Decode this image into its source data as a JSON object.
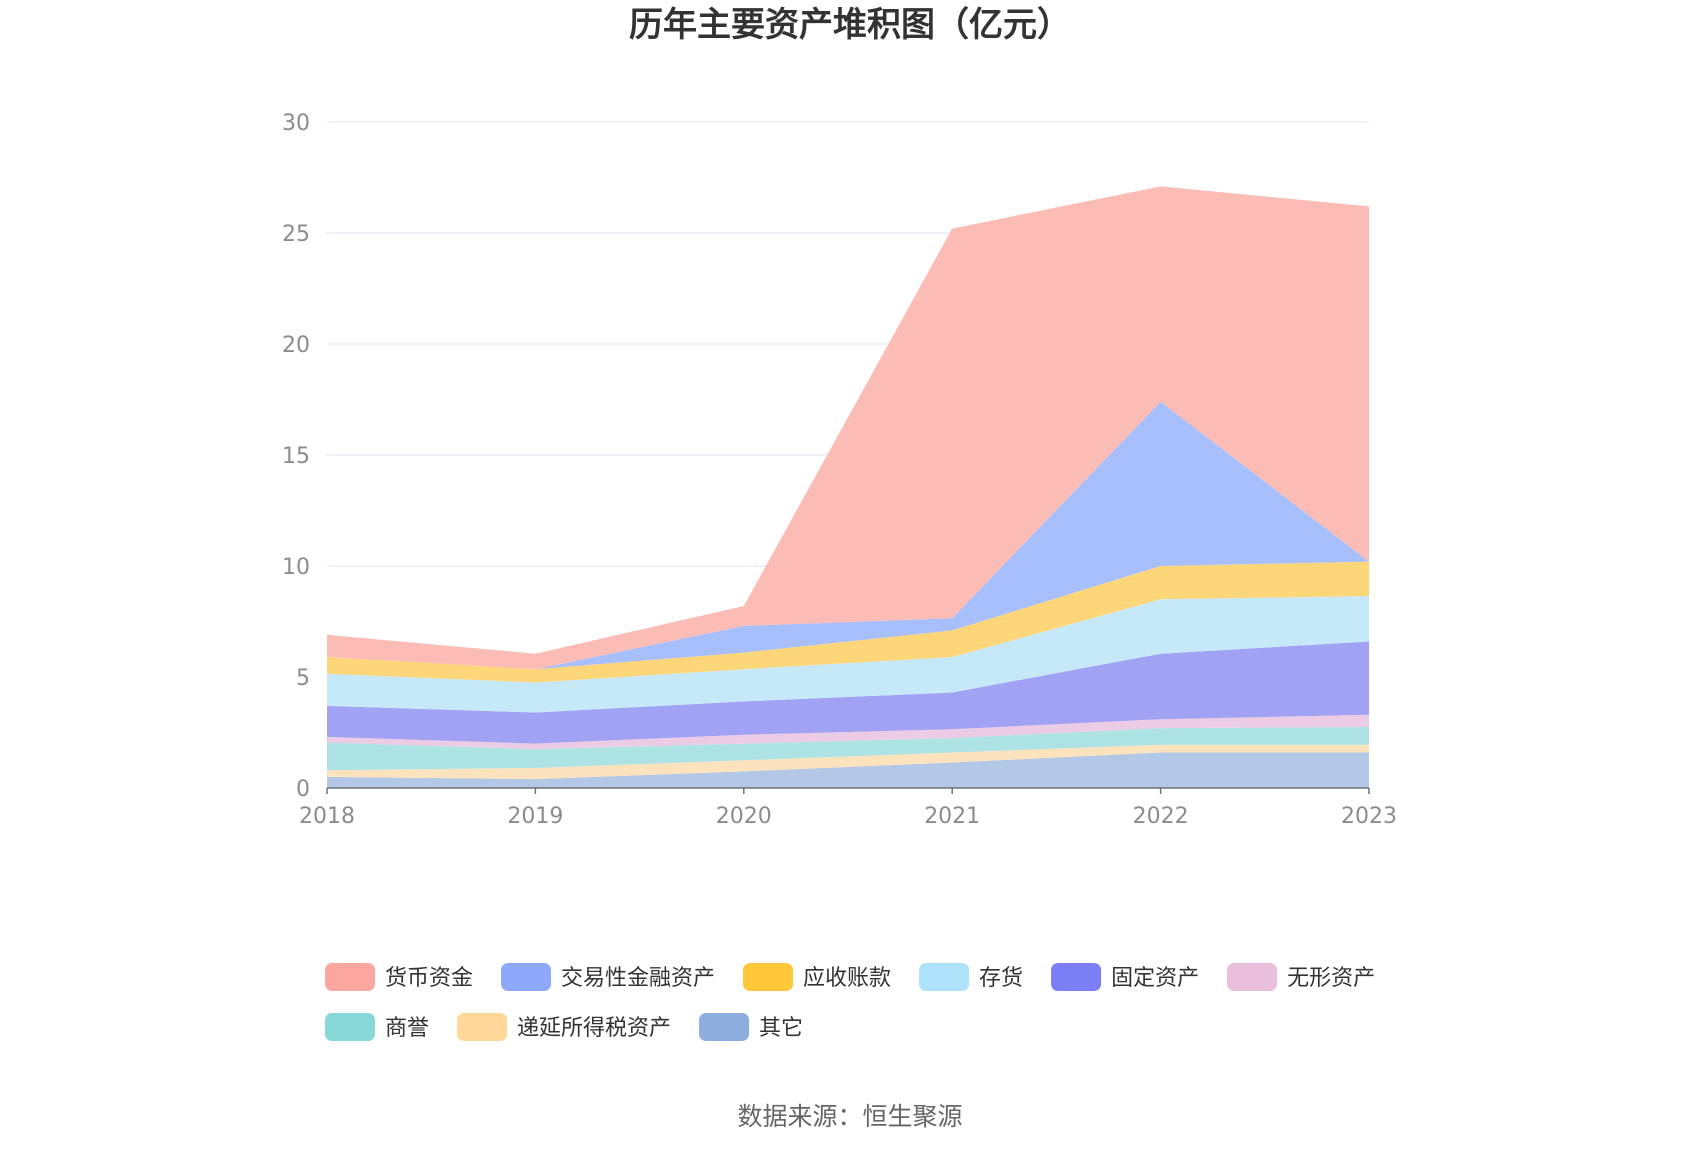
{
  "chart_data": {
    "type": "area",
    "stacked": true,
    "title": "历年主要资产堆积图（亿元）",
    "source": "数据来源：恒生聚源",
    "xlabel": "",
    "ylabel": "",
    "categories": [
      "2018",
      "2019",
      "2020",
      "2021",
      "2022",
      "2023"
    ],
    "ylim": [
      0,
      30
    ],
    "yticks": [
      0,
      5,
      10,
      15,
      20,
      25,
      30
    ],
    "grid": true,
    "legend_position": "bottom",
    "series": [
      {
        "name": "其它",
        "color": "#8eaee0",
        "fill": "#b3c7e6",
        "values": [
          0.5,
          0.4,
          0.75,
          1.15,
          1.6,
          1.6
        ]
      },
      {
        "name": "递延所得税资产",
        "color": "#ffd899",
        "fill": "#fde3bd",
        "values": [
          0.3,
          0.5,
          0.5,
          0.45,
          0.35,
          0.35
        ]
      },
      {
        "name": "商誉",
        "color": "#88d7d9",
        "fill": "#ade3e4",
        "values": [
          1.25,
          0.85,
          0.75,
          0.65,
          0.75,
          0.8
        ]
      },
      {
        "name": "无形资产",
        "color": "#e9bfdc",
        "fill": "#eccbe4",
        "values": [
          0.25,
          0.25,
          0.4,
          0.4,
          0.4,
          0.55
        ]
      },
      {
        "name": "固定资产",
        "color": "#7b7ef5",
        "fill": "#a2a2f4",
        "values": [
          1.4,
          1.4,
          1.5,
          1.65,
          2.95,
          3.3
        ]
      },
      {
        "name": "存货",
        "color": "#aee3fb",
        "fill": "#c6e9fa",
        "values": [
          1.45,
          1.35,
          1.45,
          1.6,
          2.45,
          2.05
        ]
      },
      {
        "name": "应收账款",
        "color": "#ffc83b",
        "fill": "#fed67a",
        "values": [
          0.75,
          0.6,
          0.75,
          1.2,
          1.5,
          1.55
        ]
      },
      {
        "name": "交易性金融资产",
        "color": "#8ea8fc",
        "fill": "#a8bffe",
        "values": [
          0.0,
          0.0,
          1.2,
          0.55,
          7.4,
          0.0
        ]
      },
      {
        "name": "货币资金",
        "color": "#fba79f",
        "fill": "#fcbcb6",
        "values": [
          1.0,
          0.7,
          0.9,
          17.55,
          9.7,
          16.0
        ]
      }
    ]
  }
}
